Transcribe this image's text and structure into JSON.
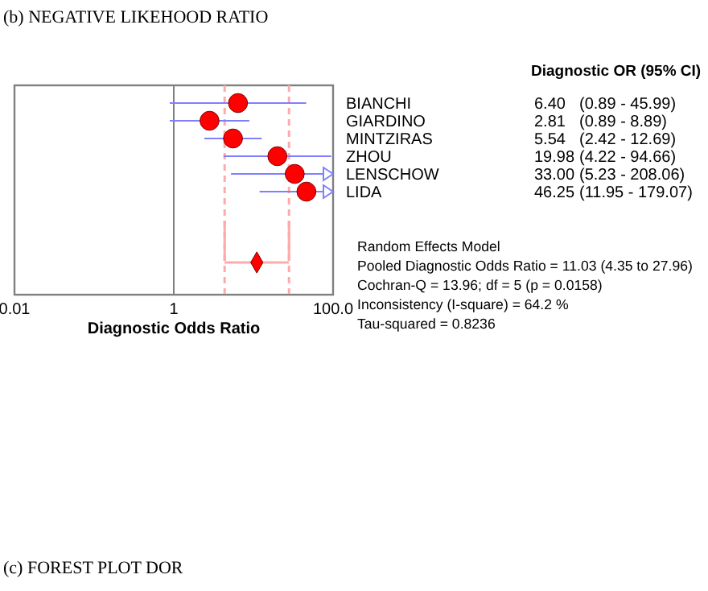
{
  "chart_data": {
    "type": "scatter",
    "orientation": "horizontal",
    "log": "x",
    "xlim": [
      0.01,
      100
    ],
    "xticks": [
      0.01,
      1,
      {
        "value": 100,
        "label": "100.0"
      }
    ],
    "xlabel": "Diagnostic Odds Ratio",
    "categories": [
      "BIANCHI",
      "GIARDINO",
      "MINTZIRAS",
      "ZHOU",
      "LENSCHOW",
      "LIDA",
      null,
      null,
      null,
      null
    ],
    "series": [
      {
        "marker": "circle",
        "color": "#ff0000",
        "values": [
          6.4,
          2.81,
          5.54,
          19.98,
          33.0,
          46.25,
          null,
          null,
          null,
          null
        ],
        "errors": [
          [
            0.89,
            45.99
          ],
          [
            0.89,
            8.89
          ],
          [
            2.42,
            12.69
          ],
          [
            4.22,
            94.66
          ],
          [
            5.23,
            100
          ],
          [
            11.95,
            100
          ],
          null,
          null,
          null,
          null
        ]
      },
      {
        "marker": "diamond",
        "color": "#ff0000",
        "values": [
          null,
          null,
          null,
          null,
          null,
          null,
          null,
          null,
          null,
          11.03
        ],
        "errors": [
          null,
          null,
          null,
          null,
          null,
          null,
          null,
          null,
          null,
          [
            4.35,
            27.96
          ]
        ]
      }
    ],
    "ref_lines": [
      {
        "axis": "x",
        "value": 1,
        "color": "#808080",
        "line_style": "solid"
      },
      {
        "axis": "x",
        "value": 4.35,
        "color": "#ffaaaa",
        "line_style": "dashed"
      },
      {
        "axis": "x",
        "value": 27.96,
        "color": "#ffaaaa",
        "line_style": "dashed"
      }
    ],
    "annotations": [
      "(b) NEGATIVE LIKEHOOD RATIO",
      "Diagnostic OR (95% CI)",
      "6.40 (0.89 - 45.99)",
      "2.81 (0.89 - 8.89)",
      "5.54 (2.42 - 12.69)",
      "19.98 (4.22 - 94.66)",
      "33.00 (5.23 - 208.06)",
      "46.25 (11.95 - 179.07)",
      "Random Effects Model",
      "Pooled Diagnostic Odds Ratio = 11.03 (4.35 to 27.96)",
      "Cochran-Q = 13.96; df =  5 (p = 0.0158)",
      "Inconsistency (I-square) = 64.2 %",
      "Tau-squared = 0.8236",
      "(c) FOREST PLOT DOR"
    ]
  }
}
